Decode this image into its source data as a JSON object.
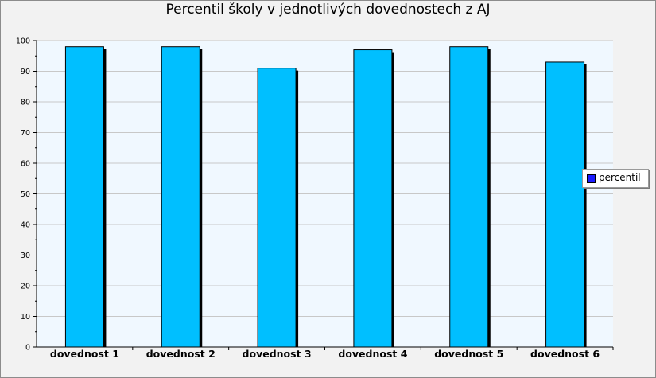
{
  "chart_data": {
    "type": "bar",
    "title": "Percentil školy v jednotlivých dovednostech z AJ",
    "categories": [
      "dovednost 1",
      "dovednost 2",
      "dovednost 3",
      "dovednost 4",
      "dovednost 5",
      "dovednost 6"
    ],
    "series": [
      {
        "name": "percentil",
        "values": [
          98,
          98,
          91,
          97,
          98,
          93
        ],
        "color": "#00bfff"
      }
    ],
    "ylim": [
      0,
      100
    ],
    "yticks": [
      0,
      10,
      20,
      30,
      40,
      50,
      60,
      70,
      80,
      90,
      100
    ],
    "grid": true,
    "legend_position": "right",
    "colors": {
      "plot_bg": "#f0f8ff",
      "outer_bg": "#f2f2f2",
      "grid": "#c8c8c8",
      "legend_swatch": "#1c1cff"
    }
  }
}
